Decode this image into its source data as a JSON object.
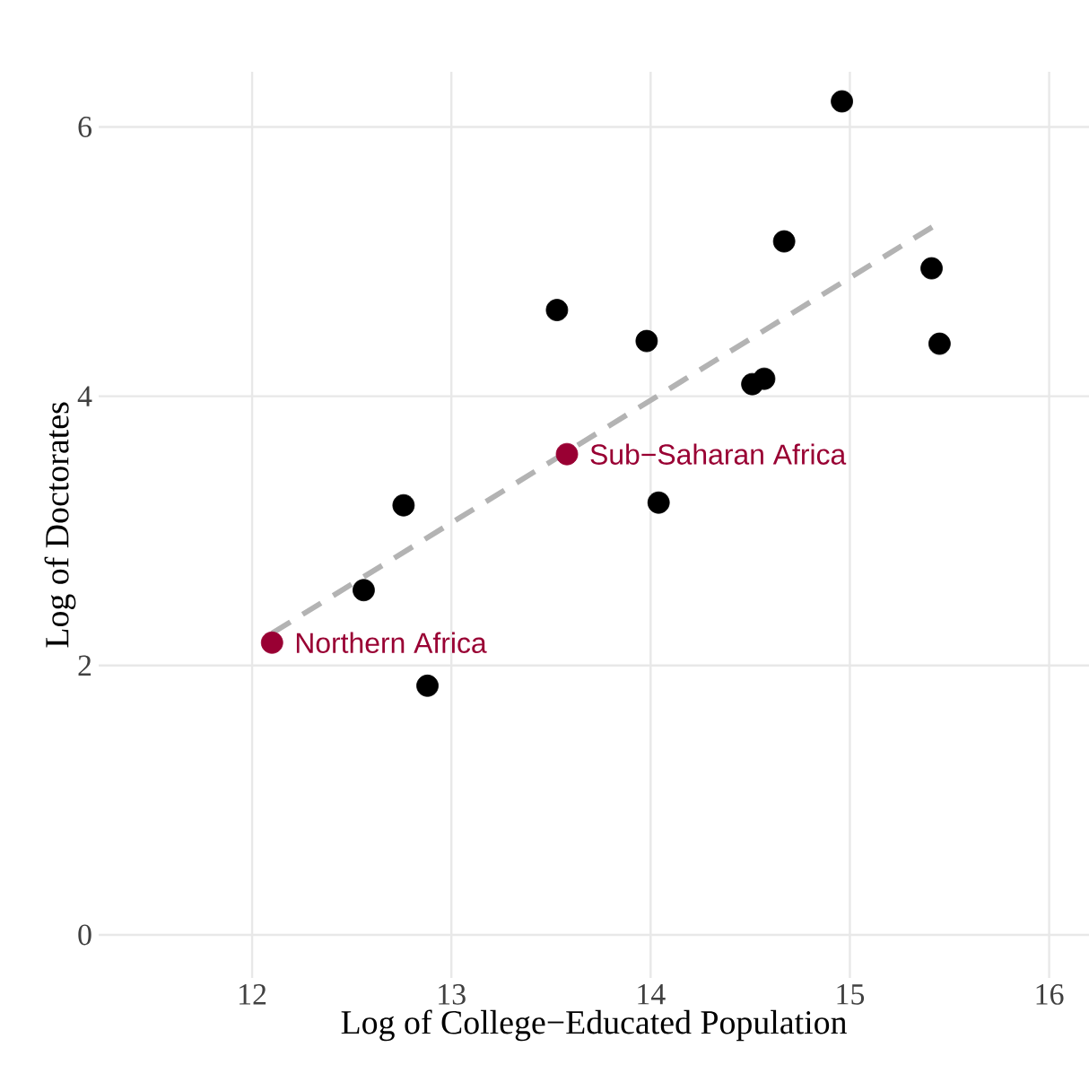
{
  "chart_data": {
    "type": "scatter",
    "xlabel": "Log of College−Educated Population",
    "ylabel": "Log of Doctorates",
    "xlim": [
      11.23,
      16.2
    ],
    "ylim": [
      -0.32,
      6.41
    ],
    "xticks": [
      12,
      13,
      14,
      15,
      16
    ],
    "yticks": [
      0,
      2,
      4,
      6
    ],
    "grid": true,
    "series": [
      {
        "color": "#000000",
        "marker": "circle",
        "x": [
          12.56,
          12.76,
          12.88,
          13.53,
          13.98,
          14.04,
          14.51,
          14.57,
          14.67,
          14.96,
          15.41,
          15.45
        ],
        "values": [
          2.56,
          3.19,
          1.85,
          4.64,
          4.41,
          3.21,
          4.09,
          4.13,
          5.15,
          6.19,
          4.95,
          4.39
        ]
      },
      {
        "color": "#990033",
        "marker": "circle",
        "x": [
          12.1,
          13.58
        ],
        "values": [
          2.17,
          3.57
        ]
      },
      {
        "type": "line",
        "color": "#b3b3b3",
        "line_style": "dashed",
        "marker": "none",
        "x": [
          12.1,
          15.45
        ],
        "values": [
          2.24,
          5.29
        ]
      }
    ],
    "annotations": [
      {
        "text": "Northern Africa",
        "x": 12.1,
        "y": 2.17
      },
      {
        "text": "Sub−Saharan Africa",
        "x": 13.58,
        "y": 3.57
      }
    ]
  }
}
